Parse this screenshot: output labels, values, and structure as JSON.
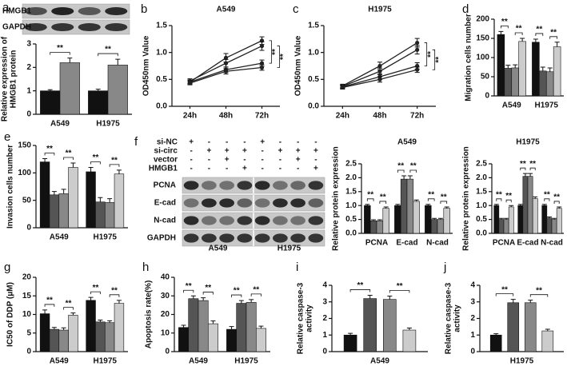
{
  "blot_a": {
    "rows": [
      "HMGB1",
      "GAPDH"
    ]
  },
  "blot_f": {
    "label": "f",
    "conditions": [
      {
        "label": "si-NC",
        "signs": [
          "+",
          "-",
          "-",
          "-",
          "+",
          "-",
          "-",
          "-"
        ]
      },
      {
        "label": "si-circ",
        "signs": [
          "-",
          "+",
          "+",
          "+",
          "-",
          "+",
          "+",
          "+"
        ]
      },
      {
        "label": "vector",
        "signs": [
          "-",
          "-",
          "+",
          "-",
          "-",
          "-",
          "+",
          "-"
        ]
      },
      {
        "label": "HMGB1",
        "signs": [
          "-",
          "-",
          "-",
          "+",
          "-",
          "-",
          "-",
          "+"
        ]
      }
    ],
    "rows": [
      "PCNA",
      "E-cad",
      "N-cad",
      "GAPDH"
    ],
    "cell_lines": [
      "A549",
      "H1975"
    ]
  },
  "chart_data": [
    {
      "type": "bar",
      "label": "a",
      "ylabel": [
        "Relative expression of",
        "HMGB1 protein"
      ],
      "categories": [
        "A549",
        "H1975"
      ],
      "series": [
        {
          "color": "#111111",
          "values": [
            1.0,
            1.0
          ],
          "errors": [
            0.05,
            0.07
          ]
        },
        {
          "color": "#888888",
          "values": [
            2.2,
            2.1
          ],
          "errors": [
            0.2,
            0.25
          ]
        }
      ],
      "ylim": [
        0,
        3
      ],
      "yticks": [
        0,
        1,
        2,
        3
      ],
      "annotations": [
        "**",
        "**"
      ]
    },
    {
      "type": "line",
      "label": "b",
      "title": "A549",
      "ylabel": [
        "OD450nm Value"
      ],
      "categories": [
        "24h",
        "48h",
        "72h"
      ],
      "series": [
        {
          "color": "#222222",
          "values": [
            0.45,
            0.9,
            1.22
          ],
          "errors": [
            0.04,
            0.08,
            0.07
          ]
        },
        {
          "color": "#222222",
          "values": [
            0.47,
            0.8,
            1.12
          ],
          "errors": [
            0.04,
            0.07,
            0.08
          ]
        },
        {
          "color": "#222222",
          "values": [
            0.45,
            0.68,
            0.8
          ],
          "errors": [
            0.03,
            0.05,
            0.06
          ]
        },
        {
          "color": "#222222",
          "values": [
            0.43,
            0.65,
            0.72
          ],
          "errors": [
            0.03,
            0.05,
            0.05
          ]
        }
      ],
      "ylim": [
        0,
        1.5
      ],
      "yticks": [
        {
          "value": 0,
          "label": "0.0"
        },
        0.5,
        {
          "value": 1,
          "label": "1.0"
        },
        1.5
      ],
      "annotations": [
        "**",
        "**"
      ]
    },
    {
      "type": "line",
      "label": "c",
      "title": "H1975",
      "ylabel": [
        "OD450nm Value"
      ],
      "categories": [
        "24h",
        "48h",
        "72h"
      ],
      "series": [
        {
          "color": "#222222",
          "values": [
            0.38,
            0.75,
            1.18
          ],
          "errors": [
            0.03,
            0.07,
            0.08
          ]
        },
        {
          "color": "#222222",
          "values": [
            0.37,
            0.65,
            1.05
          ],
          "errors": [
            0.03,
            0.06,
            0.08
          ]
        },
        {
          "color": "#222222",
          "values": [
            0.36,
            0.55,
            0.75
          ],
          "errors": [
            0.03,
            0.05,
            0.06
          ]
        },
        {
          "color": "#222222",
          "values": [
            0.35,
            0.5,
            0.68
          ],
          "errors": [
            0.03,
            0.05,
            0.05
          ]
        }
      ],
      "ylim": [
        0,
        1.5
      ],
      "yticks": [
        {
          "value": 0,
          "label": "0.0"
        },
        0.5,
        {
          "value": 1,
          "label": "1.0"
        },
        1.5
      ],
      "annotations": [
        "**",
        "**"
      ]
    },
    {
      "type": "bar",
      "label": "d",
      "ylabel": [
        "Migration cells number"
      ],
      "categories": [
        "A549",
        "H1975"
      ],
      "series": [
        {
          "color": "#111111",
          "values": [
            160,
            140
          ],
          "errors": [
            8,
            8
          ]
        },
        {
          "color": "#555555",
          "values": [
            72,
            65
          ],
          "errors": [
            8,
            10
          ]
        },
        {
          "color": "#888888",
          "values": [
            73,
            63
          ],
          "errors": [
            8,
            10
          ]
        },
        {
          "color": "#cccccc",
          "values": [
            142,
            128
          ],
          "errors": [
            8,
            12
          ]
        }
      ],
      "ylim": [
        0,
        200
      ],
      "yticks": [
        0,
        50,
        100,
        150,
        200
      ],
      "annotations": [
        "**",
        "**",
        "**",
        "**"
      ]
    },
    {
      "type": "bar",
      "label": "e",
      "ylabel": [
        "Invasion cells number"
      ],
      "categories": [
        "A549",
        "H1975"
      ],
      "series": [
        {
          "color": "#111111",
          "values": [
            120,
            102
          ],
          "errors": [
            6,
            8
          ]
        },
        {
          "color": "#555555",
          "values": [
            60,
            47
          ],
          "errors": [
            6,
            8
          ]
        },
        {
          "color": "#888888",
          "values": [
            62,
            46
          ],
          "errors": [
            8,
            7
          ]
        },
        {
          "color": "#cccccc",
          "values": [
            110,
            98
          ],
          "errors": [
            8,
            7
          ]
        }
      ],
      "ylim": [
        0,
        150
      ],
      "yticks": [
        0,
        50,
        100,
        150
      ],
      "annotations": [
        "**",
        "**",
        "**",
        "**"
      ]
    },
    {
      "type": "bar",
      "title": "A549",
      "ylabel": [
        "Relative protein expression"
      ],
      "categories": [
        "PCNA",
        "E-cad",
        "N-cad"
      ],
      "series": [
        {
          "color": "#111111",
          "values": [
            1.0,
            1.0,
            1.0
          ],
          "errors": [
            0.04,
            0.04,
            0.04
          ]
        },
        {
          "color": "#555555",
          "values": [
            0.45,
            1.95,
            0.5
          ],
          "errors": [
            0.04,
            0.12,
            0.04
          ]
        },
        {
          "color": "#888888",
          "values": [
            0.45,
            1.95,
            0.5
          ],
          "errors": [
            0.04,
            0.12,
            0.04
          ]
        },
        {
          "color": "#cccccc",
          "values": [
            0.9,
            1.15,
            0.9
          ],
          "errors": [
            0.05,
            0.05,
            0.05
          ]
        }
      ],
      "ylim": [
        0,
        2.5
      ],
      "yticks": [
        {
          "value": 0,
          "label": "0.0"
        },
        0.5,
        {
          "value": 1,
          "label": "1.0"
        },
        1.5,
        {
          "value": 2,
          "label": "2.0"
        },
        2.5
      ],
      "annotations": [
        "**",
        "**",
        "**",
        "**",
        "**",
        "**"
      ]
    },
    {
      "type": "bar",
      "title": "H1975",
      "ylabel": [
        "Relative protein expression"
      ],
      "categories": [
        "PCNA",
        "E-cad",
        "N-cad"
      ],
      "series": [
        {
          "color": "#111111",
          "values": [
            1.0,
            1.0,
            1.0
          ],
          "errors": [
            0.04,
            0.04,
            0.04
          ]
        },
        {
          "color": "#555555",
          "values": [
            0.5,
            2.05,
            0.55
          ],
          "errors": [
            0.04,
            0.1,
            0.04
          ]
        },
        {
          "color": "#888888",
          "values": [
            0.5,
            2.05,
            0.5
          ],
          "errors": [
            0.04,
            0.1,
            0.04
          ]
        },
        {
          "color": "#cccccc",
          "values": [
            0.95,
            1.25,
            0.9
          ],
          "errors": [
            0.05,
            0.06,
            0.05
          ]
        }
      ],
      "ylim": [
        0,
        2.5
      ],
      "yticks": [
        {
          "value": 0,
          "label": "0.0"
        },
        0.5,
        {
          "value": 1,
          "label": "1.0"
        },
        1.5,
        {
          "value": 2,
          "label": "2.0"
        },
        2.5
      ],
      "annotations": [
        "**",
        "**",
        "**",
        "**",
        "**",
        "**"
      ]
    },
    {
      "type": "bar",
      "label": "g",
      "ylabel": [
        "IC50 of DDP (μM)"
      ],
      "categories": [
        "A549",
        "H1975"
      ],
      "series": [
        {
          "color": "#111111",
          "values": [
            10.2,
            13.8
          ],
          "errors": [
            1.0,
            0.8
          ]
        },
        {
          "color": "#555555",
          "values": [
            6,
            8
          ],
          "errors": [
            0.5,
            0.5
          ]
        },
        {
          "color": "#888888",
          "values": [
            5.8,
            7.8
          ],
          "errors": [
            0.6,
            0.5
          ]
        },
        {
          "color": "#cccccc",
          "values": [
            9.8,
            13
          ],
          "errors": [
            0.6,
            0.8
          ]
        }
      ],
      "ylim": [
        0,
        20
      ],
      "yticks": [
        0,
        5,
        10,
        15,
        20
      ],
      "annotations": [
        "**",
        "**",
        "**",
        "**"
      ]
    },
    {
      "type": "bar",
      "label": "h",
      "ylabel": [
        "Apoptosis rate(%)"
      ],
      "categories": [
        "A549",
        "H1975"
      ],
      "series": [
        {
          "color": "#111111",
          "values": [
            13,
            12
          ],
          "errors": [
            1.2,
            1.5
          ]
        },
        {
          "color": "#555555",
          "values": [
            28.5,
            26
          ],
          "errors": [
            1.5,
            1.5
          ]
        },
        {
          "color": "#888888",
          "values": [
            27.5,
            26.5
          ],
          "errors": [
            1.5,
            1.5
          ]
        },
        {
          "color": "#cccccc",
          "values": [
            15,
            12.5
          ],
          "errors": [
            1.5,
            1.2
          ]
        }
      ],
      "ylim": [
        0,
        40
      ],
      "yticks": [
        0,
        10,
        20,
        30,
        40
      ],
      "annotations": [
        "**",
        "**",
        "**",
        "**"
      ]
    },
    {
      "type": "bar",
      "label": "i",
      "ylabel": [
        "Relative caspase-3",
        "activity"
      ],
      "categories": [
        "A549"
      ],
      "series": [
        {
          "color": "#111111",
          "values": [
            1.0
          ],
          "errors": [
            0.1
          ]
        },
        {
          "color": "#555555",
          "values": [
            3.2
          ],
          "errors": [
            0.2
          ]
        },
        {
          "color": "#888888",
          "values": [
            3.15
          ],
          "errors": [
            0.2
          ]
        },
        {
          "color": "#cccccc",
          "values": [
            1.3
          ],
          "errors": [
            0.12
          ]
        }
      ],
      "ylim": [
        0,
        4
      ],
      "yticks": [
        0,
        1,
        2,
        3,
        4
      ],
      "annotations": [
        "**",
        "**"
      ]
    },
    {
      "type": "bar",
      "label": "j",
      "ylabel": [
        "Relative caspase-3",
        "activity"
      ],
      "categories": [
        "H1975"
      ],
      "series": [
        {
          "color": "#111111",
          "values": [
            1.0
          ],
          "errors": [
            0.08
          ]
        },
        {
          "color": "#555555",
          "values": [
            2.95
          ],
          "errors": [
            0.2
          ]
        },
        {
          "color": "#888888",
          "values": [
            2.95
          ],
          "errors": [
            0.15
          ]
        },
        {
          "color": "#cccccc",
          "values": [
            1.25
          ],
          "errors": [
            0.1
          ]
        }
      ],
      "ylim": [
        0,
        4
      ],
      "yticks": [
        0,
        1,
        2,
        3,
        4
      ],
      "annotations": [
        "**",
        "**"
      ]
    }
  ]
}
